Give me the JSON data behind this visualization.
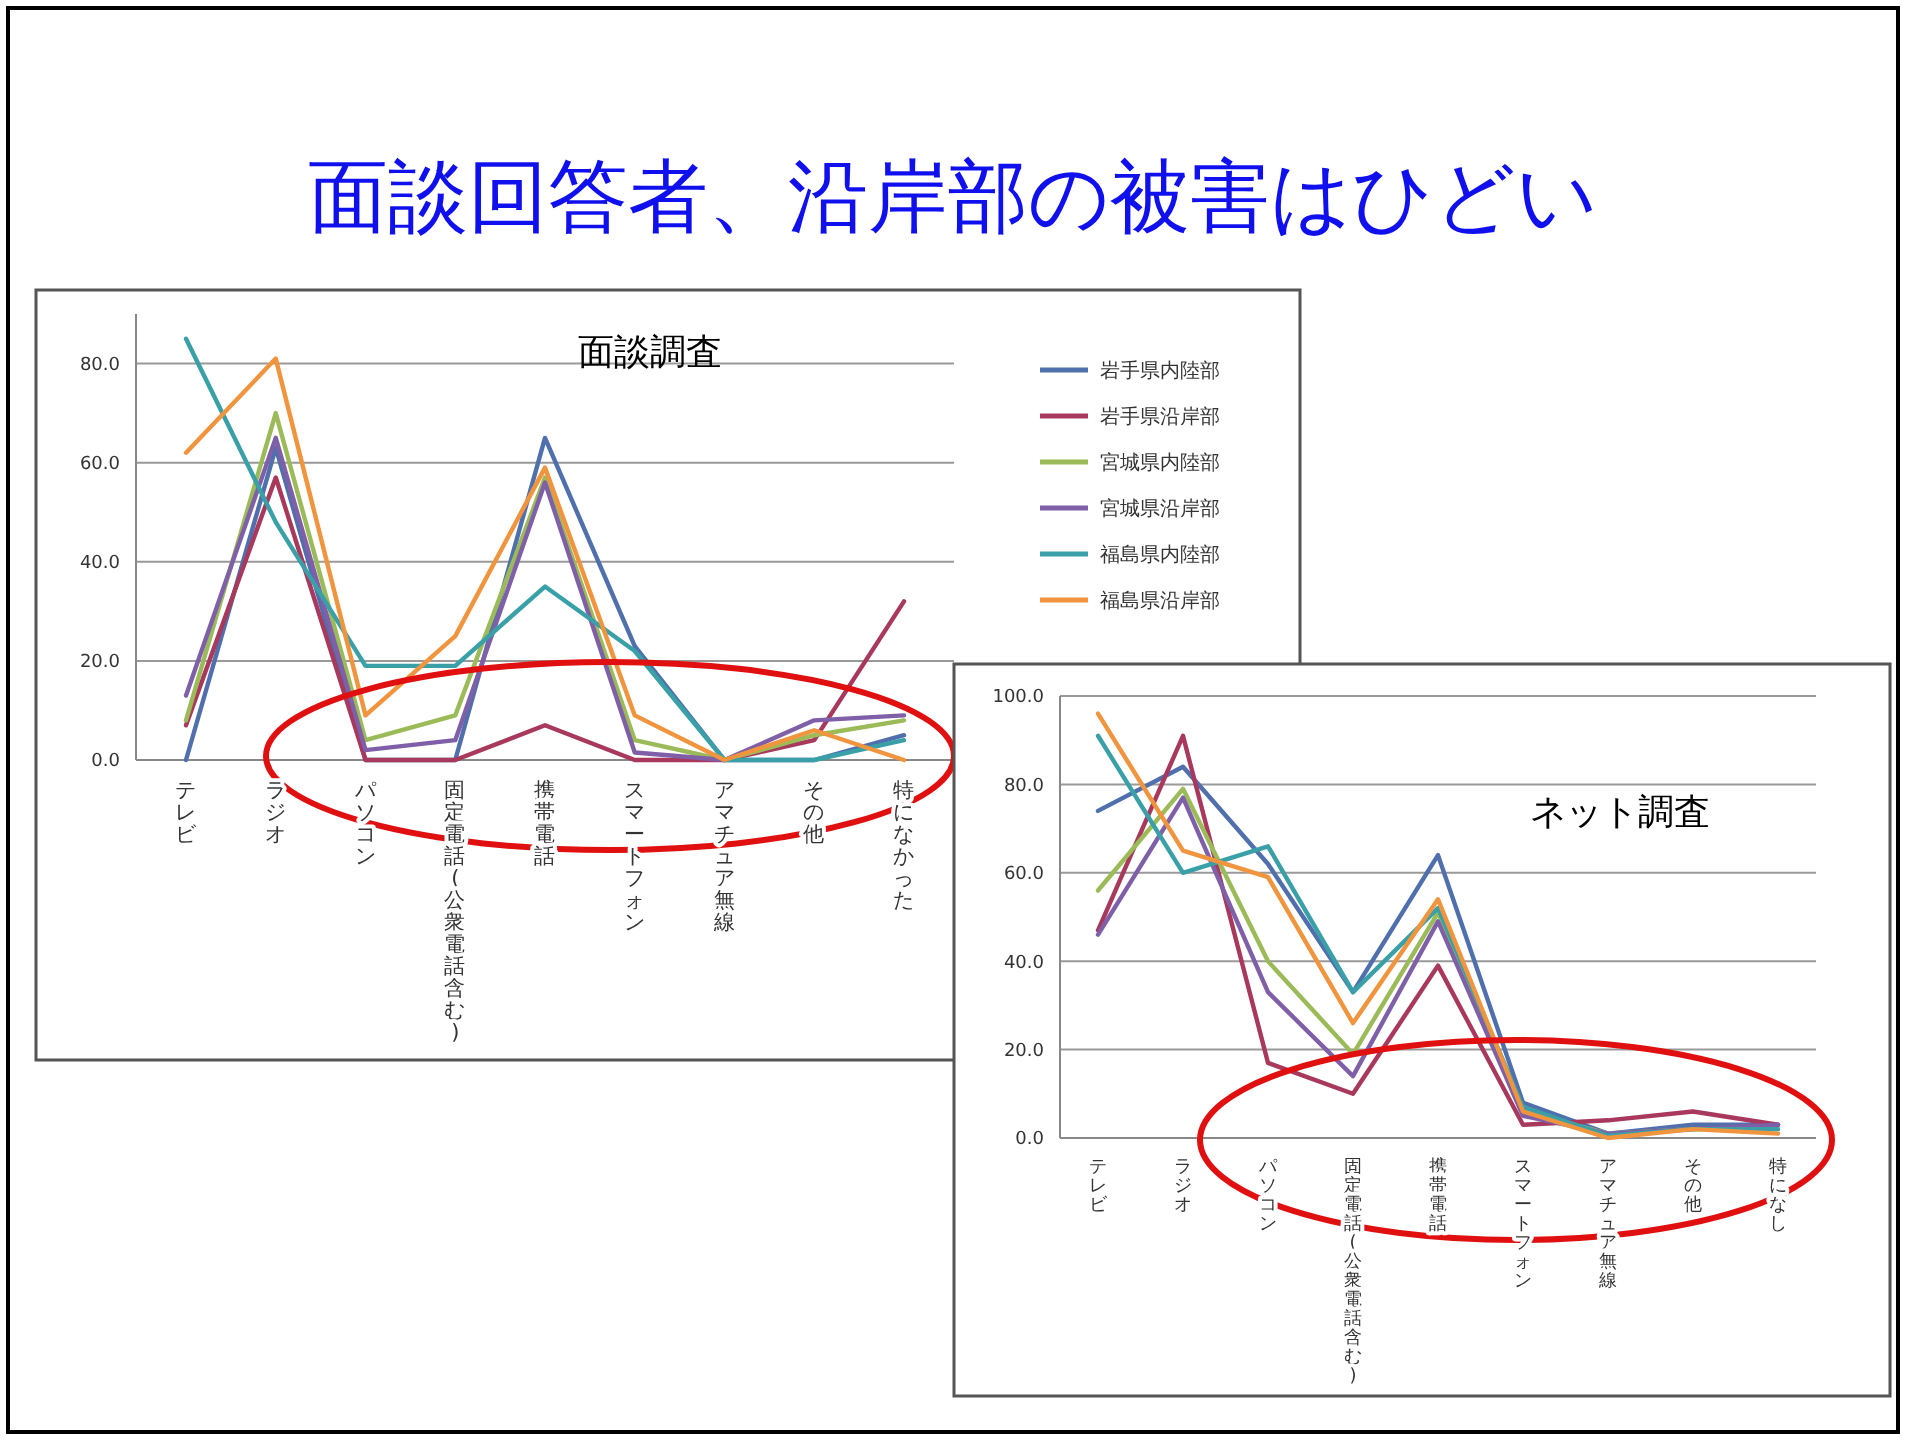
{
  "chart_data": [
    {
      "type": "line",
      "title": "面談回答者、沿岸部の被害はひどい",
      "subtitle": "面談調査",
      "categories": [
        "テレビ",
        "ラジオ",
        "パソコン",
        "固定電話(公衆電話含む)",
        "携帯電話",
        "スマートフォン",
        "アマチュア無線",
        "その他",
        "特になかった"
      ],
      "series": [
        {
          "name": "岩手県内陸部",
          "color": "#4f6fad",
          "values": [
            0,
            63,
            0,
            0,
            65,
            23,
            0,
            0,
            5
          ]
        },
        {
          "name": "岩手県沿岸部",
          "color": "#a8385c",
          "values": [
            7,
            57,
            0,
            0,
            7,
            0,
            0,
            4,
            32
          ]
        },
        {
          "name": "宮城県内陸部",
          "color": "#9bbb59",
          "values": [
            8,
            70,
            4,
            9,
            57,
            4,
            0,
            5,
            8
          ]
        },
        {
          "name": "宮城県沿岸部",
          "color": "#7f5fa8",
          "values": [
            13,
            65,
            2,
            4,
            56,
            1.5,
            0,
            8,
            9
          ]
        },
        {
          "name": "福島県内陸部",
          "color": "#3aa0a8",
          "values": [
            85,
            48,
            19,
            19,
            35,
            22,
            0,
            0,
            4
          ]
        },
        {
          "name": "福島県沿岸部",
          "color": "#f0943e",
          "values": [
            62,
            81,
            9,
            25,
            59,
            9,
            0,
            6,
            0
          ]
        }
      ],
      "ylim": [
        0,
        90
      ],
      "yticks": [
        {
          "value": 0,
          "label": "0.0"
        },
        {
          "value": 20,
          "label": "20.0"
        },
        {
          "value": 40,
          "label": "40.0"
        },
        {
          "value": 60,
          "label": "60.0"
        },
        {
          "value": 80,
          "label": "80.0"
        }
      ],
      "grid": "y",
      "legend": "right",
      "marker": "none",
      "line_style": "solid"
    },
    {
      "type": "line",
      "title": "ネット調査",
      "categories": [
        "テレビ",
        "ラジオ",
        "パソコン",
        "固定電話(公衆電話含む)",
        "携帯電話",
        "スマートフォン",
        "アマチュア無線",
        "その他",
        "特になし"
      ],
      "series": [
        {
          "color": "#4f6fad",
          "values": [
            74,
            84,
            62,
            33,
            64,
            8,
            1,
            3,
            3
          ]
        },
        {
          "color": "#a8385c",
          "values": [
            47,
            91,
            17,
            10,
            39,
            3,
            4,
            6,
            3
          ]
        },
        {
          "color": "#9bbb59",
          "values": [
            56,
            79,
            40,
            19,
            51,
            6,
            1,
            2,
            2
          ]
        },
        {
          "color": "#7f5fa8",
          "values": [
            46,
            77,
            33,
            14,
            49,
            5,
            1,
            2,
            3
          ]
        },
        {
          "color": "#3aa0a8",
          "values": [
            91,
            60,
            66,
            33,
            52,
            7,
            0.5,
            2,
            2
          ]
        },
        {
          "color": "#f0943e",
          "values": [
            96,
            65,
            59,
            26,
            54,
            6,
            0,
            2,
            1
          ]
        }
      ],
      "ylim": [
        0,
        100
      ],
      "yticks": [
        {
          "value": 0,
          "label": "0.0"
        },
        {
          "value": 20,
          "label": "20.0"
        },
        {
          "value": 40,
          "label": "40.0"
        },
        {
          "value": 60,
          "label": "60.0"
        },
        {
          "value": 80,
          "label": "80.0"
        },
        {
          "value": 100,
          "label": "100.0"
        }
      ],
      "grid": "y",
      "legend": false,
      "marker": "none",
      "line_style": "solid"
    }
  ]
}
